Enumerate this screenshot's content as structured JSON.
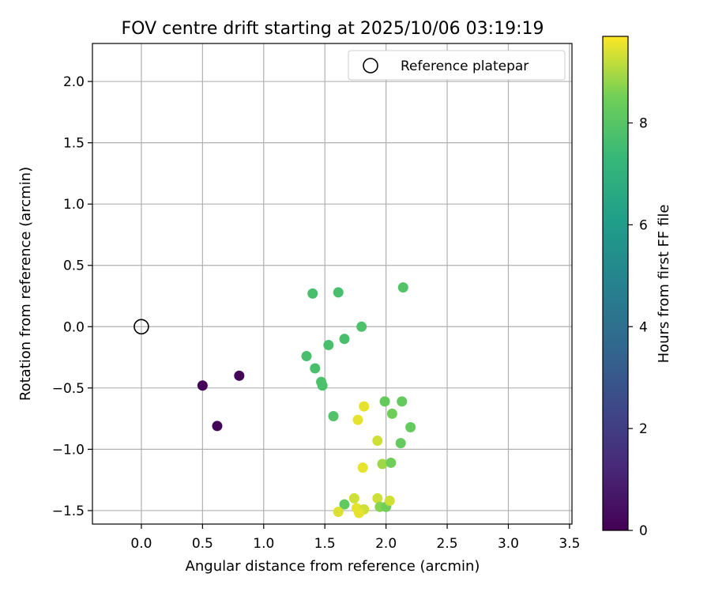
{
  "chart_data": {
    "type": "scatter",
    "title": "FOV centre drift starting at 2025/10/06 03:19:19",
    "xlabel": "Angular distance from reference (arcmin)",
    "ylabel": "Rotation from reference (arcmin)",
    "xlim": [
      -0.4,
      3.52
    ],
    "ylim": [
      -1.61,
      2.31
    ],
    "x_ticks": [
      0.0,
      0.5,
      1.0,
      1.5,
      2.0,
      2.5,
      3.0,
      3.5
    ],
    "x_tick_labels": [
      "0.0",
      "0.5",
      "1.0",
      "1.5",
      "2.0",
      "2.5",
      "3.0",
      "3.5"
    ],
    "y_ticks": [
      -1.5,
      -1.0,
      -0.5,
      0.0,
      0.5,
      1.0,
      1.5,
      2.0
    ],
    "y_tick_labels": [
      "−1.5",
      "−1.0",
      "−0.5",
      "0.0",
      "0.5",
      "1.0",
      "1.5",
      "2.0"
    ],
    "grid": true,
    "legend": {
      "placement": "top-right",
      "entries": [
        "Reference platepar"
      ]
    },
    "reference_point": {
      "x": 0.0,
      "y": 0.0,
      "label": "Reference platepar"
    },
    "colorbar": {
      "label": "Hours from first FF file",
      "range": [
        0,
        9.7
      ],
      "ticks": [
        0,
        2,
        4,
        6,
        8
      ],
      "tick_labels": [
        "0",
        "2",
        "4",
        "6",
        "8"
      ]
    },
    "points": [
      {
        "x": 0.5,
        "y": -0.48,
        "hours": 0.1
      },
      {
        "x": 0.8,
        "y": -0.4,
        "hours": 0.1
      },
      {
        "x": 0.62,
        "y": -0.81,
        "hours": 0.1
      },
      {
        "x": 1.4,
        "y": 0.27,
        "hours": 7.7
      },
      {
        "x": 1.61,
        "y": 0.28,
        "hours": 7.7
      },
      {
        "x": 2.14,
        "y": 0.32,
        "hours": 7.9
      },
      {
        "x": 1.8,
        "y": 0.0,
        "hours": 7.8
      },
      {
        "x": 1.66,
        "y": -0.1,
        "hours": 7.7
      },
      {
        "x": 1.53,
        "y": -0.15,
        "hours": 7.7
      },
      {
        "x": 1.35,
        "y": -0.24,
        "hours": 7.7
      },
      {
        "x": 1.42,
        "y": -0.34,
        "hours": 7.7
      },
      {
        "x": 1.47,
        "y": -0.45,
        "hours": 7.8
      },
      {
        "x": 1.48,
        "y": -0.48,
        "hours": 7.8
      },
      {
        "x": 1.57,
        "y": -0.73,
        "hours": 7.9
      },
      {
        "x": 1.99,
        "y": -0.61,
        "hours": 8.3
      },
      {
        "x": 2.13,
        "y": -0.61,
        "hours": 8.3
      },
      {
        "x": 2.05,
        "y": -0.71,
        "hours": 8.5
      },
      {
        "x": 2.2,
        "y": -0.82,
        "hours": 8.3
      },
      {
        "x": 2.12,
        "y": -0.95,
        "hours": 8.3
      },
      {
        "x": 1.82,
        "y": -0.65,
        "hours": 9.5
      },
      {
        "x": 1.77,
        "y": -0.76,
        "hours": 9.5
      },
      {
        "x": 1.93,
        "y": -0.93,
        "hours": 9.3
      },
      {
        "x": 1.97,
        "y": -1.12,
        "hours": 8.9
      },
      {
        "x": 2.04,
        "y": -1.11,
        "hours": 8.5
      },
      {
        "x": 1.81,
        "y": -1.15,
        "hours": 9.5
      },
      {
        "x": 1.74,
        "y": -1.4,
        "hours": 9.3
      },
      {
        "x": 1.93,
        "y": -1.4,
        "hours": 9.3
      },
      {
        "x": 1.66,
        "y": -1.45,
        "hours": 8.2
      },
      {
        "x": 1.76,
        "y": -1.48,
        "hours": 9.5
      },
      {
        "x": 1.82,
        "y": -1.49,
        "hours": 9.3
      },
      {
        "x": 1.61,
        "y": -1.51,
        "hours": 9.4
      },
      {
        "x": 1.78,
        "y": -1.52,
        "hours": 9.5
      },
      {
        "x": 1.95,
        "y": -1.47,
        "hours": 8.7
      },
      {
        "x": 2.0,
        "y": -1.47,
        "hours": 8.5
      },
      {
        "x": 2.03,
        "y": -1.42,
        "hours": 9.3
      }
    ]
  }
}
